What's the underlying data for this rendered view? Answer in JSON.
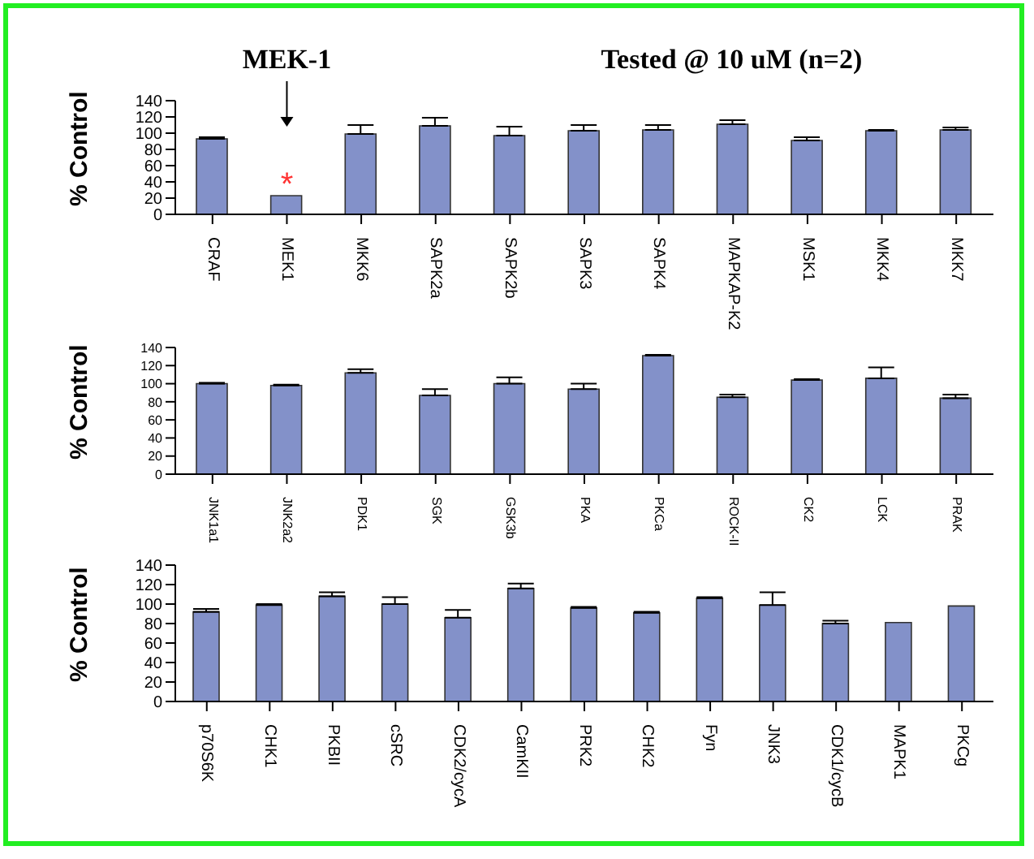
{
  "chart_data": [
    {
      "type": "bar",
      "title": "Tested @ 10 uM (n=2)",
      "ylabel": "% Control",
      "categories": [
        "CRAF",
        "MEK1",
        "MKK6",
        "SAPK2a",
        "SAPK2b",
        "SAPK3",
        "SAPK4",
        "MAPKAP-K2",
        "MSK1",
        "MKK4",
        "MKK7"
      ],
      "values": [
        93,
        23,
        99,
        109,
        97,
        103,
        104,
        111,
        91,
        103,
        104
      ],
      "errors": [
        [
          93,
          95
        ],
        null,
        [
          99,
          110
        ],
        [
          109,
          119
        ],
        [
          97,
          108
        ],
        [
          103,
          110
        ],
        [
          104,
          110
        ],
        [
          111,
          116
        ],
        [
          91,
          95
        ],
        [
          103,
          104
        ],
        [
          104,
          107
        ]
      ],
      "color": "#8391c9",
      "ylim": [
        0,
        140
      ],
      "yticks": [
        0,
        20,
        40,
        60,
        80,
        100,
        120,
        140
      ],
      "grid": false,
      "legend": false,
      "annotations": [
        {
          "text": "MEK-1",
          "x": "MEK1"
        },
        "*"
      ]
    },
    {
      "type": "bar",
      "ylabel": "% Control",
      "categories": [
        "JNK1a1",
        "JNK2a2",
        "PDK1",
        "SGK",
        "GSK3b",
        "PKA",
        "PKCa",
        "ROCK-II",
        "CK2",
        "LCK",
        "PRAK"
      ],
      "values": [
        100,
        98,
        112,
        87,
        100,
        94,
        131,
        85,
        104,
        106,
        84
      ],
      "errors": [
        [
          100,
          101
        ],
        [
          98,
          99
        ],
        [
          112,
          116
        ],
        [
          87,
          94
        ],
        [
          100,
          107
        ],
        [
          94,
          100
        ],
        [
          131,
          132
        ],
        [
          85,
          88
        ],
        [
          104,
          105
        ],
        [
          106,
          118
        ],
        [
          84,
          88
        ]
      ],
      "color": "#8391c9",
      "ylim": [
        0,
        140
      ],
      "yticks": [
        0,
        20,
        40,
        60,
        80,
        100,
        120,
        140
      ],
      "grid": false,
      "legend": false
    },
    {
      "type": "bar",
      "ylabel": "% Control",
      "categories": [
        "p70S6K",
        "CHK1",
        "PKBII",
        "cSRC",
        "CDK2/cycA",
        "CamKII",
        "PRK2",
        "CHK2",
        "Fyn",
        "JNK3",
        "CDK1/cycB",
        "MAPK1",
        "PKCg"
      ],
      "values": [
        92,
        99,
        108,
        100,
        86,
        116,
        96,
        91,
        106,
        99,
        80,
        81,
        98
      ],
      "errors": [
        [
          92,
          95
        ],
        [
          99,
          100
        ],
        [
          108,
          112
        ],
        [
          100,
          107
        ],
        [
          86,
          94
        ],
        [
          116,
          121
        ],
        [
          96,
          97
        ],
        [
          91,
          92
        ],
        [
          106,
          107
        ],
        [
          99,
          112
        ],
        [
          80,
          83
        ],
        null,
        null
      ],
      "color": "#8391c9",
      "ylim": [
        0,
        140
      ],
      "yticks": [
        0,
        20,
        40,
        60,
        80,
        100,
        120,
        140
      ],
      "grid": false,
      "legend": false
    }
  ]
}
